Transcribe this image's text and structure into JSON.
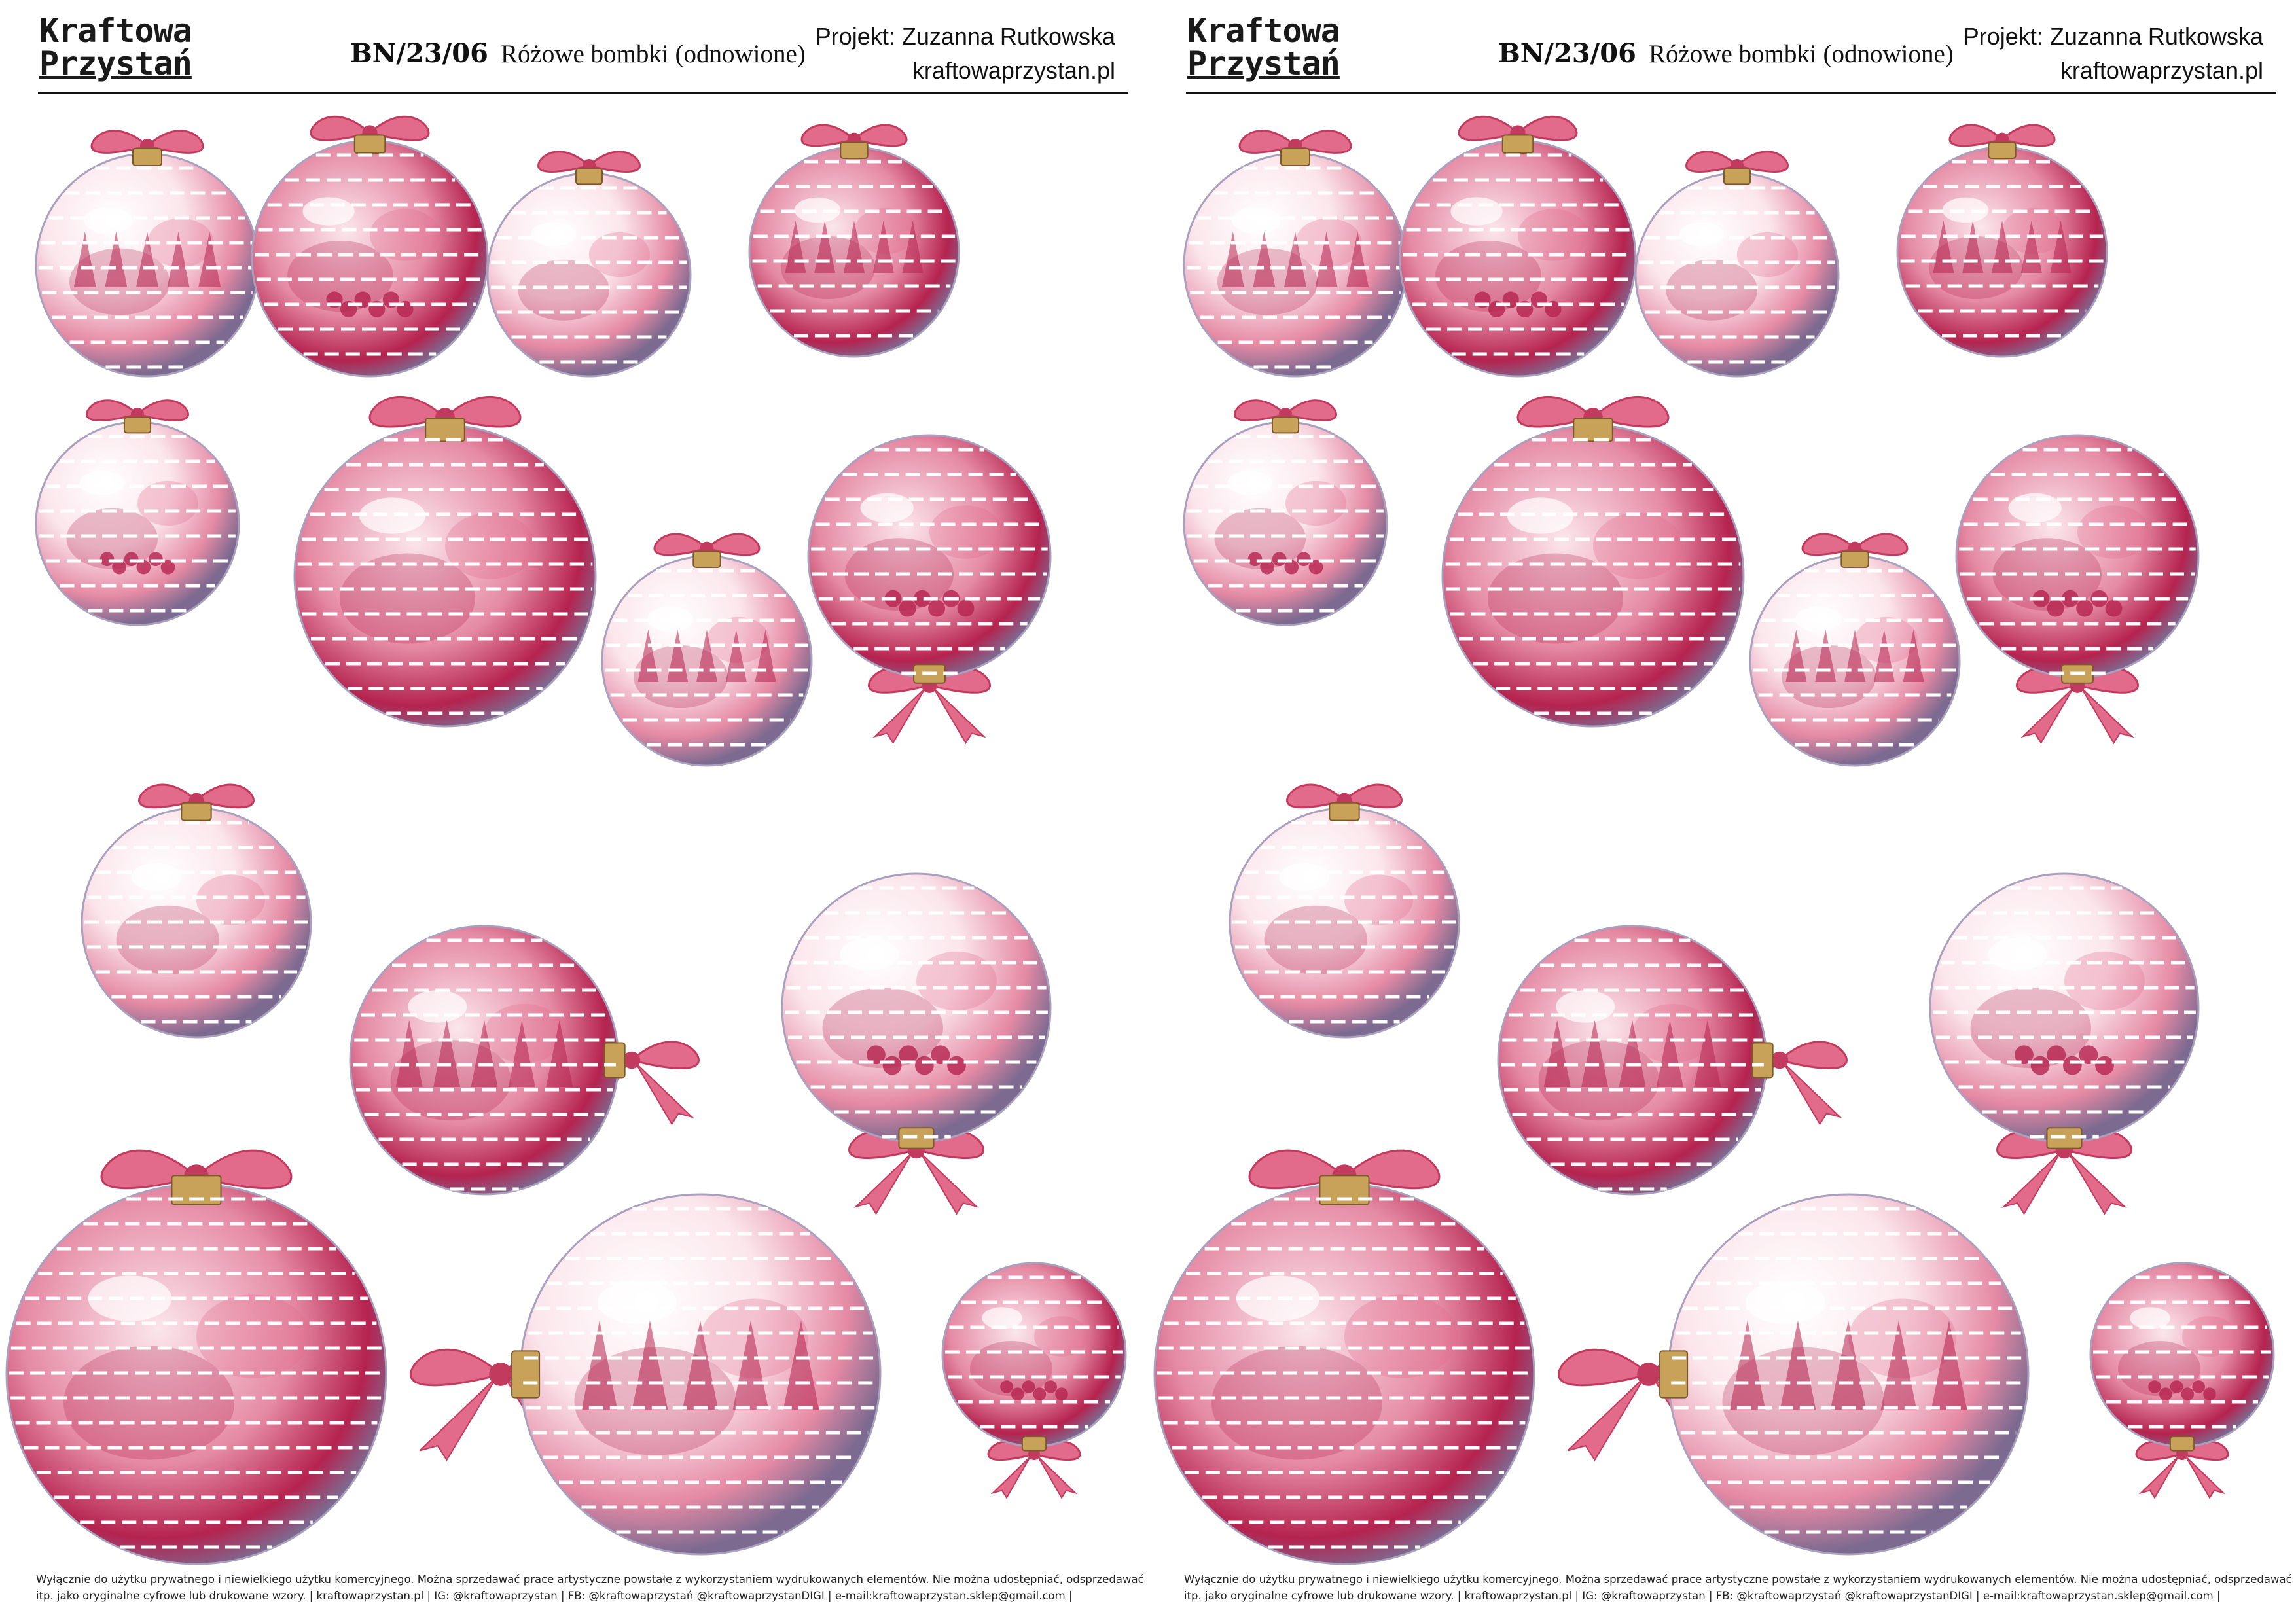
{
  "header": {
    "logo_line1": "Kraftowa",
    "logo_line2": "Przystań",
    "code": "BN/23/06",
    "title": "Różowe bombki (odnowione)",
    "project_label": "Projekt: Zuzanna Rutkowska",
    "website": "kraftowaprzystan.pl"
  },
  "footer": {
    "line1": "Wyłącznie do użytku prywatnego i niewielkiego użytku komercyjnego. Można sprzedawać prace artystyczne powstałe z wykorzystaniem wydrukowanych elementów. Nie można udostępniać, odsprzedawać",
    "line2_left": "itp. jako oryginalne cyfrowe lub drukowane wzory.  |  kraftowaprzystan.pl  |  IG: @kraftowaprzystan  |  FB: @kraftowaprzystań @kraftowaprzystanDIGI  |  e-mail:kraftowaprzystan.sklep@gmail.com  |",
    "line2_right": "itp. jako oryginalne cyfrowe lub drukowane wzory.  |  kraftowaprzystan.pl  |  IG: @kraftowaprzystan  |  FB: @kraftowaprzystań @kraftowaprzystanDIGI  |  e-mail:kraftowaprzystan.sklep@gmail.com  |"
  },
  "colors": {
    "ribbon": "#e26a8a",
    "ribbon_dark": "#c23a5e",
    "ball_light": "#fbe6ec",
    "ball_mid": "#e58aa4",
    "ball_deep": "#b5234f",
    "ball_shadow": "#7d6a90",
    "cap_gold": "#c9a25a"
  }
}
